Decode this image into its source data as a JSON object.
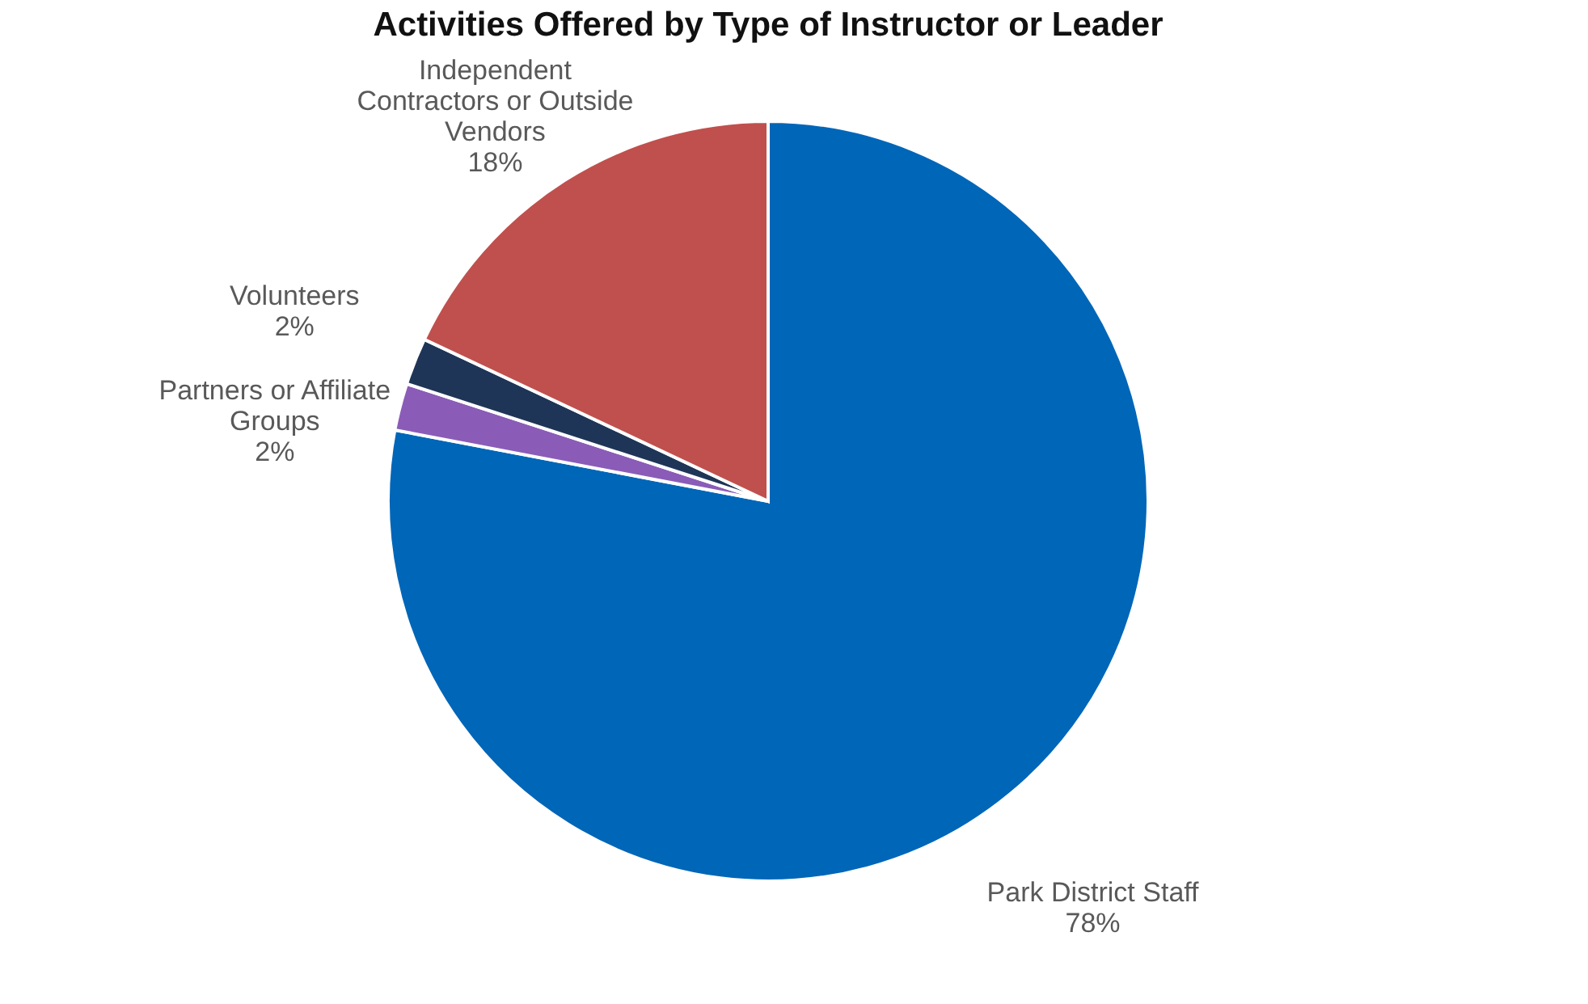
{
  "chart_data": {
    "type": "pie",
    "title": "Activities Offered by Type of Instructor or Leader",
    "categories": [
      "Park District Staff",
      "Partners or Affiliate Groups",
      "Volunteers",
      "Independent Contractors or Outside Vendors"
    ],
    "values": [
      78,
      2,
      2,
      18
    ],
    "value_labels": [
      "78%",
      "2%",
      "2%",
      "18%"
    ],
    "colors": [
      "#0066b8",
      "#8a5cb8",
      "#1f3557",
      "#c0504d"
    ]
  }
}
